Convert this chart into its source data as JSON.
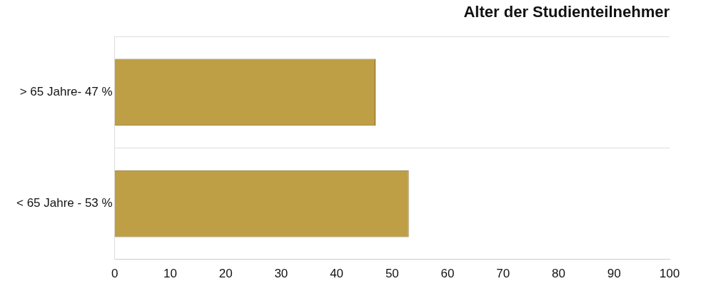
{
  "chart_data": {
    "type": "bar",
    "orientation": "horizontal",
    "title": "Alter der Studienteilnehmer",
    "categories": [
      "> 65 Jahre- 47 %",
      "< 65 Jahre - 53 %"
    ],
    "values": [
      47,
      53
    ],
    "color": "#bf9f45",
    "xlim": [
      0,
      100
    ],
    "xticks": [
      0,
      10,
      20,
      30,
      40,
      50,
      60,
      70,
      80,
      90,
      100
    ],
    "grid": "y",
    "legend": false
  }
}
